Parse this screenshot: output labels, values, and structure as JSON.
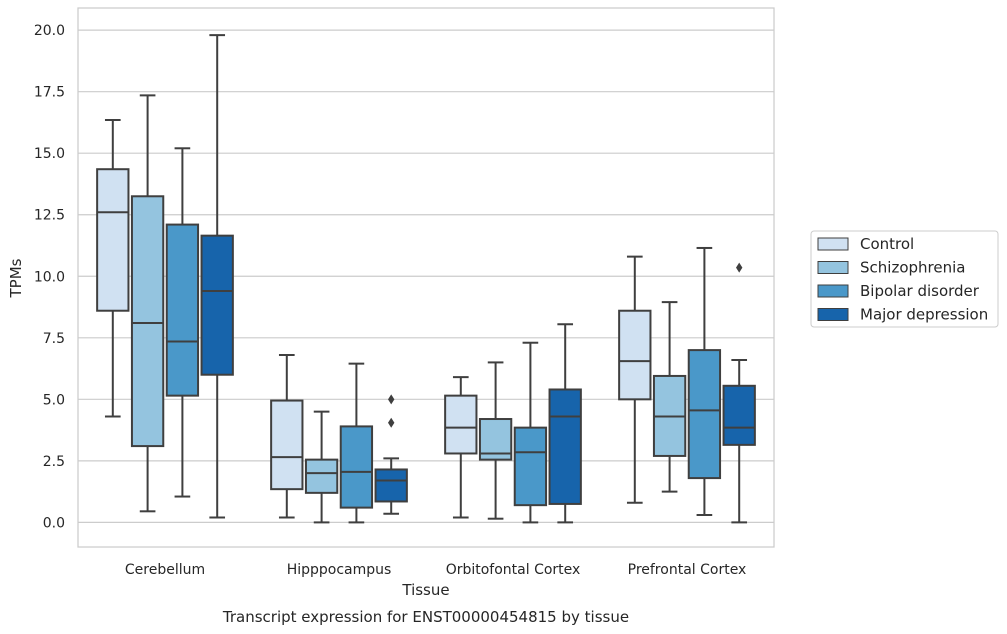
{
  "chart_data": {
    "type": "box",
    "title": "Transcript expression for ENST00000454815 by tissue",
    "xlabel": "Tissue",
    "ylabel": "TPMs",
    "ylim": [
      -1.0,
      20.9
    ],
    "yticks": [
      "0.0",
      "2.5",
      "5.0",
      "7.5",
      "10.0",
      "12.5",
      "15.0",
      "17.5",
      "20.0"
    ],
    "grid": true,
    "legend_position": "right",
    "categories": [
      "Cerebellum",
      "Hipppocampus",
      "Orbitofontal Cortex",
      "Prefrontal Cortex"
    ],
    "series": [
      {
        "name": "Control",
        "color": "#d0e1f2",
        "boxes": [
          {
            "whislo": 4.3,
            "q1": 8.6,
            "med": 12.6,
            "q3": 14.35,
            "whishi": 16.35,
            "fliers": []
          },
          {
            "whislo": 0.2,
            "q1": 1.35,
            "med": 2.65,
            "q3": 4.95,
            "whishi": 6.8,
            "fliers": []
          },
          {
            "whislo": 0.2,
            "q1": 2.8,
            "med": 3.85,
            "q3": 5.15,
            "whishi": 5.9,
            "fliers": []
          },
          {
            "whislo": 0.8,
            "q1": 5.0,
            "med": 6.55,
            "q3": 8.6,
            "whishi": 10.8,
            "fliers": []
          }
        ]
      },
      {
        "name": "Schizophrenia",
        "color": "#94c4df",
        "boxes": [
          {
            "whislo": 0.45,
            "q1": 3.1,
            "med": 8.1,
            "q3": 13.25,
            "whishi": 17.35,
            "fliers": []
          },
          {
            "whislo": 0.0,
            "q1": 1.2,
            "med": 2.0,
            "q3": 2.55,
            "whishi": 4.5,
            "fliers": []
          },
          {
            "whislo": 0.15,
            "q1": 2.55,
            "med": 2.8,
            "q3": 4.2,
            "whishi": 6.5,
            "fliers": []
          },
          {
            "whislo": 1.25,
            "q1": 2.7,
            "med": 4.3,
            "q3": 5.95,
            "whishi": 8.95,
            "fliers": []
          }
        ]
      },
      {
        "name": "Bipolar disorder",
        "color": "#4a98c9",
        "boxes": [
          {
            "whislo": 1.05,
            "q1": 5.15,
            "med": 7.35,
            "q3": 12.1,
            "whishi": 15.2,
            "fliers": []
          },
          {
            "whislo": 0.0,
            "q1": 0.6,
            "med": 2.05,
            "q3": 3.9,
            "whishi": 6.45,
            "fliers": []
          },
          {
            "whislo": 0.0,
            "q1": 0.7,
            "med": 2.85,
            "q3": 3.85,
            "whishi": 7.3,
            "fliers": []
          },
          {
            "whislo": 0.3,
            "q1": 1.8,
            "med": 4.55,
            "q3": 7.0,
            "whishi": 11.15,
            "fliers": []
          }
        ]
      },
      {
        "name": "Major depression",
        "color": "#1764ab",
        "boxes": [
          {
            "whislo": 0.2,
            "q1": 6.0,
            "med": 9.4,
            "q3": 11.65,
            "whishi": 19.8,
            "fliers": []
          },
          {
            "whislo": 0.35,
            "q1": 0.85,
            "med": 1.7,
            "q3": 2.15,
            "whishi": 2.6,
            "fliers": [
              4.05,
              5.0
            ]
          },
          {
            "whislo": 0.0,
            "q1": 0.75,
            "med": 4.3,
            "q3": 5.4,
            "whishi": 8.05,
            "fliers": []
          },
          {
            "whislo": 0.0,
            "q1": 3.15,
            "med": 3.85,
            "q3": 5.55,
            "whishi": 6.6,
            "fliers": [
              10.35
            ]
          }
        ]
      }
    ]
  }
}
